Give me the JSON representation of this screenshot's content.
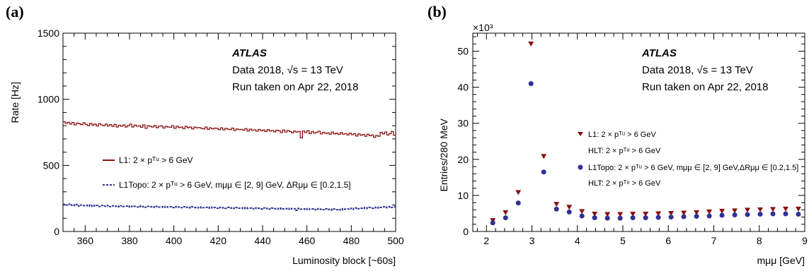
{
  "panel_a": {
    "label": "(a)",
    "atlas": "ATLAS",
    "info_line1": "Data 2018, √s = 13 TeV",
    "info_line2": "Run taken on Apr 22, 2018",
    "legend_l1": "L1: 2 × pᵀᵘ > 6 GeV",
    "legend_topo": "L1Topo: 2 × pᵀᵘ > 6 GeV, mμμ ∈ [2, 9] GeV, ΔRμμ ∈ [0.2,1.5]"
  },
  "panel_b": {
    "label": "(b)",
    "atlas": "ATLAS",
    "info_line1": "Data 2018, √s = 13 TeV",
    "info_line2": "Run taken on Apr 22, 2018",
    "exponent": "×10³",
    "legend_l1": "L1: 2 × pᵀᵘ > 6 GeV",
    "legend_l1_hlt": "HLT: 2 × pᵀᵘ > 6 GeV",
    "legend_topo": "L1Topo: 2 × pᵀᵘ > 6 GeV, mμμ ∈ [2, 9] GeV,ΔRμμ ∈ [0.2,1.5]",
    "legend_topo_hlt": "HLT: 2 × pᵀᵘ > 6 GeV"
  },
  "colors": {
    "l1": "#8b0f0f",
    "topo": "#2e3192"
  },
  "chart_data": [
    {
      "type": "line",
      "title": "",
      "xlabel": "Luminosity block [~60s]",
      "ylabel": "Rate [Hz]",
      "xlim": [
        350,
        500
      ],
      "ylim": [
        0,
        1500
      ],
      "xticks": [
        360,
        380,
        400,
        420,
        440,
        460,
        480,
        500
      ],
      "yticks": [
        0,
        500,
        1000,
        1500
      ],
      "series": [
        {
          "name": "L1: 2 × pᵀᵘ > 6 GeV",
          "style": "step",
          "x_start": 350,
          "x_step": 1,
          "values": [
            830,
            818,
            826,
            812,
            824,
            806,
            820,
            815,
            808,
            822,
            810,
            800,
            818,
            805,
            812,
            798,
            816,
            806,
            800,
            812,
            798,
            808,
            795,
            810,
            790,
            804,
            796,
            806,
            790,
            800,
            812,
            790,
            804,
            796,
            800,
            788,
            806,
            780,
            800,
            795,
            790,
            802,
            785,
            796,
            800,
            782,
            795,
            790,
            788,
            800,
            780,
            796,
            786,
            790,
            778,
            795,
            785,
            790,
            776,
            790,
            784,
            786,
            780,
            776,
            790,
            772,
            784,
            776,
            782,
            780,
            770,
            784,
            768,
            780,
            774,
            770,
            782,
            764,
            776,
            770,
            772,
            766,
            778,
            760,
            774,
            766,
            768,
            758,
            772,
            762,
            768,
            756,
            770,
            760,
            764,
            754,
            766,
            762,
            748,
            768,
            752,
            764,
            756,
            746,
            760,
            752,
            756,
            708,
            760,
            748,
            762,
            740,
            756,
            744,
            750,
            758,
            738,
            750,
            742,
            746,
            736,
            752,
            738,
            744,
            734,
            748,
            736,
            740,
            730,
            744,
            732,
            740,
            722,
            738,
            728,
            734,
            720,
            736,
            724,
            730,
            712,
            726,
            720,
            750,
            738,
            752,
            730,
            740,
            756,
            728,
            742
          ]
        },
        {
          "name": "L1Topo: 2 × pᵀᵘ > 6 GeV, mμμ ∈ [2, 9] GeV, ΔRμμ ∈ [0.2,1.5]",
          "style": "step-dashed",
          "x_start": 350,
          "x_step": 1,
          "values": [
            205,
            200,
            207,
            198,
            202,
            196,
            204,
            192,
            200,
            196,
            194,
            200,
            190,
            198,
            193,
            197,
            189,
            196,
            192,
            190,
            196,
            188,
            194,
            190,
            192,
            187,
            195,
            189,
            192,
            186,
            193,
            188,
            190,
            185,
            192,
            187,
            189,
            184,
            191,
            186,
            188,
            183,
            190,
            185,
            187,
            182,
            189,
            184,
            186,
            181,
            188,
            183,
            185,
            180,
            187,
            182,
            184,
            179,
            186,
            181,
            183,
            178,
            185,
            180,
            182,
            177,
            184,
            179,
            181,
            176,
            183,
            178,
            180,
            175,
            182,
            177,
            179,
            174,
            181,
            176,
            178,
            173,
            180,
            175,
            177,
            172,
            179,
            174,
            176,
            171,
            178,
            173,
            175,
            170,
            177,
            172,
            174,
            169,
            176,
            171,
            173,
            168,
            175,
            170,
            172,
            160,
            174,
            169,
            171,
            166,
            173,
            168,
            170,
            165,
            172,
            167,
            169,
            164,
            171,
            166,
            168,
            163,
            170,
            165,
            167,
            162,
            172,
            168,
            170,
            175,
            168,
            174,
            178,
            172,
            176,
            180,
            174,
            178,
            182,
            176,
            180,
            184,
            178,
            182,
            186,
            180,
            184,
            188,
            182,
            186
          ]
        }
      ]
    },
    {
      "type": "scatter",
      "title": "",
      "xlabel": "mμμ [GeV]",
      "ylabel": "Entries/280 MeV",
      "y_multiplier": "×10³",
      "xlim": [
        1.7,
        9
      ],
      "ylim": [
        0,
        55
      ],
      "xticks": [
        2,
        3,
        4,
        5,
        6,
        7,
        8,
        9
      ],
      "yticks": [
        0,
        10,
        20,
        30,
        40,
        50
      ],
      "series": [
        {
          "name": "L1: 2 × pᵀᵘ > 6 GeV / HLT: 2 × pᵀᵘ > 6 GeV",
          "marker": "triangle-down",
          "x": [
            2.14,
            2.42,
            2.7,
            2.98,
            3.26,
            3.54,
            3.82,
            4.1,
            4.38,
            4.66,
            4.94,
            5.22,
            5.5,
            5.78,
            6.06,
            6.34,
            6.62,
            6.9,
            7.18,
            7.46,
            7.74,
            8.02,
            8.3,
            8.58,
            8.86
          ],
          "y": [
            3.0,
            5.2,
            10.8,
            52.0,
            20.8,
            7.5,
            6.7,
            5.5,
            4.8,
            4.7,
            4.7,
            4.8,
            4.8,
            4.9,
            5.0,
            5.1,
            5.2,
            5.4,
            5.6,
            5.7,
            5.9,
            6.0,
            6.1,
            6.2,
            6.2
          ]
        },
        {
          "name": "L1Topo: 2 × pᵀᵘ > 6 GeV, mμμ ∈ [2, 9] GeV,ΔRμμ ∈ [0.2,1.5] / HLT: 2 × pᵀᵘ > 6 GeV",
          "marker": "circle",
          "x": [
            2.14,
            2.42,
            2.7,
            2.98,
            3.26,
            3.54,
            3.82,
            4.1,
            4.38,
            4.66,
            4.94,
            5.22,
            5.5,
            5.78,
            6.06,
            6.34,
            6.62,
            6.9,
            7.18,
            7.46,
            7.74,
            8.02,
            8.3,
            8.58,
            8.86
          ],
          "y": [
            2.4,
            3.8,
            7.9,
            41.0,
            16.5,
            6.2,
            5.4,
            4.3,
            3.8,
            3.7,
            3.7,
            3.8,
            3.8,
            3.9,
            4.0,
            4.1,
            4.2,
            4.3,
            4.5,
            4.6,
            4.7,
            4.8,
            4.9,
            4.9,
            4.8
          ]
        }
      ]
    }
  ]
}
